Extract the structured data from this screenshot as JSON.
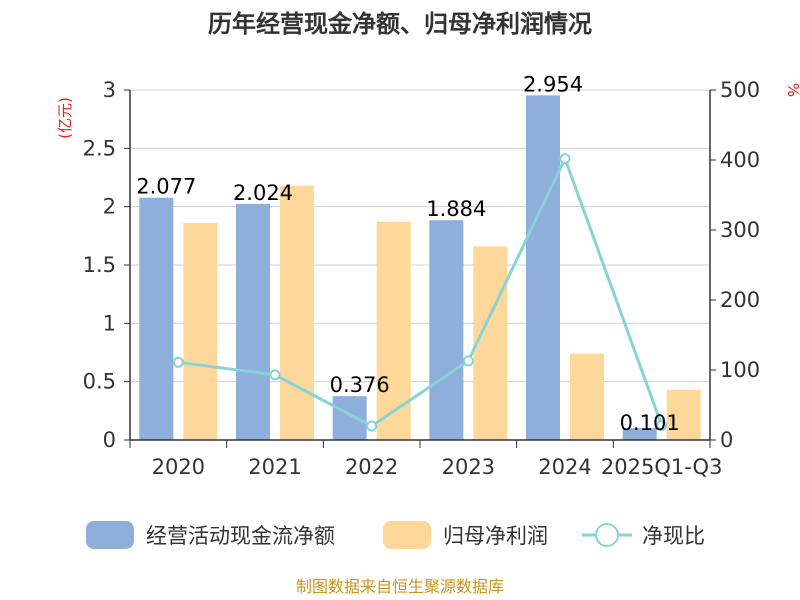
{
  "chart_data": {
    "type": "bar",
    "title": "历年经营现金净额、归母净利润情况",
    "categories": [
      "2020",
      "2021",
      "2022",
      "2023",
      "2024",
      "2025Q1-Q3"
    ],
    "series": [
      {
        "name": "经营活动现金流净额",
        "kind": "bar",
        "axis": "left",
        "color": "#8eaedb",
        "values": [
          2.077,
          2.024,
          0.376,
          1.884,
          2.954,
          0.101
        ],
        "labels": [
          "2.077",
          "2.024",
          "0.376",
          "1.884",
          "2.954",
          "0.101"
        ]
      },
      {
        "name": "归母净利润",
        "kind": "bar",
        "axis": "left",
        "color": "#fdd89a",
        "values": [
          1.86,
          2.18,
          1.87,
          1.66,
          0.74,
          0.43
        ]
      },
      {
        "name": "净现比",
        "kind": "line",
        "axis": "right",
        "color": "#88d3d6",
        "values": [
          111,
          93,
          20,
          113,
          402,
          21
        ]
      }
    ],
    "y_left": {
      "unit": "(亿元)",
      "min": 0,
      "max": 3,
      "ticks": [
        "0",
        "0.5",
        "1",
        "1.5",
        "2",
        "2.5",
        "3"
      ]
    },
    "y_right": {
      "unit": "%",
      "min": 0,
      "max": 500,
      "ticks": [
        "0",
        "100",
        "200",
        "300",
        "400",
        "500"
      ]
    },
    "source": "制图数据来自恒生聚源数据库"
  }
}
